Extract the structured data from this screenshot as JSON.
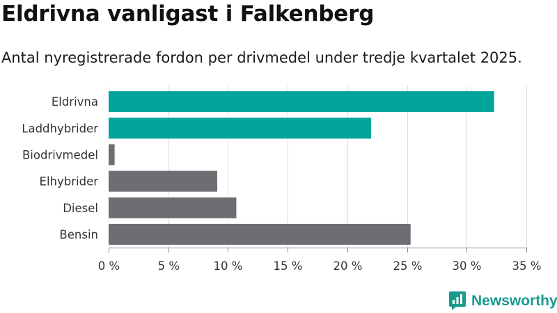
{
  "title": "Eldrivna vanligast i Falkenberg",
  "subtitle": "Antal nyregistrerade fordon per drivmedel under tredje kvartalet 2025.",
  "brand": {
    "name": "Newsworthy",
    "icon": "newsworthy-logo-icon"
  },
  "colors": {
    "highlight": "#00a49a",
    "default": "#6e6d73",
    "grid": "#dddddd",
    "brand": "#1a9a8f"
  },
  "chart_data": {
    "type": "bar",
    "orientation": "horizontal",
    "categories": [
      "Eldrivna",
      "Laddhybrider",
      "Biodrivmedel",
      "Elhybrider",
      "Diesel",
      "Bensin"
    ],
    "values": [
      32.3,
      22.0,
      0.5,
      9.1,
      10.7,
      25.3
    ],
    "highlighted": [
      true,
      true,
      false,
      false,
      false,
      false
    ],
    "xlim": [
      0,
      35
    ],
    "xticks": [
      0,
      5,
      10,
      15,
      20,
      25,
      30,
      35
    ],
    "xtick_labels": [
      "0 %",
      "5 %",
      "10 %",
      "15 %",
      "20 %",
      "25 %",
      "30 %",
      "35 %"
    ],
    "xlabel": "",
    "ylabel": "",
    "grid": "vertical"
  }
}
